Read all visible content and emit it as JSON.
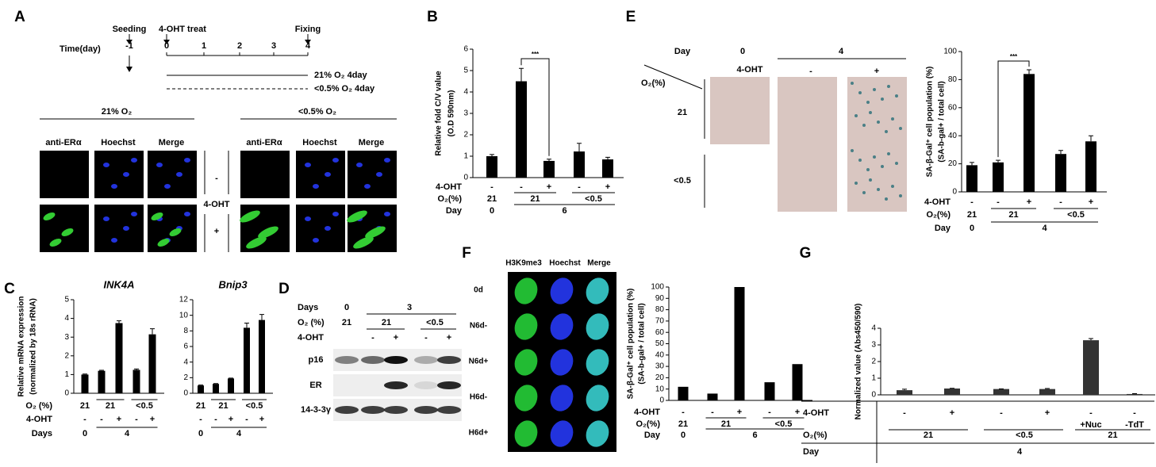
{
  "panel_labels": [
    "A",
    "B",
    "C",
    "D",
    "E",
    "F",
    "G"
  ],
  "timeline": {
    "axis_label": "Time(day)",
    "events": [
      "Seeding",
      "4-OHT treat",
      "Fixing"
    ],
    "ticks": [
      "-1",
      "0",
      "1",
      "2",
      "3",
      "4"
    ],
    "conditions": [
      "21% O₂ 4day",
      "<0.5% O₂ 4day"
    ]
  },
  "panel_a": {
    "conditions": [
      "21% O₂",
      "<0.5% O₂"
    ],
    "columns": [
      "anti-ERα",
      "Hoechst",
      "Merge"
    ],
    "treatment": "4-OHT",
    "rows": [
      "-",
      "+"
    ]
  },
  "panel_d": {
    "rows": [
      {
        "label": "Days",
        "cells": [
          "0",
          "3"
        ]
      },
      {
        "label": "O₂ (%)",
        "cells": [
          "21",
          "21",
          "<0.5"
        ]
      },
      {
        "label": "4-OHT",
        "cells": [
          "-",
          "+",
          "-",
          "+"
        ]
      }
    ],
    "bands": [
      "p16",
      "ER",
      "14-3-3γ"
    ]
  },
  "panel_e": {
    "day_label": "Day",
    "days": [
      "0",
      "4"
    ],
    "treatment": "4-OHT",
    "treatments": [
      "-",
      "+"
    ],
    "o2_label": "O₂(%)",
    "o2": [
      "21",
      "<0.5"
    ]
  },
  "panel_f": {
    "columns": [
      "H3K9me3",
      "Hoechst",
      "Merge"
    ],
    "rows": [
      "0d",
      "N6d-",
      "N6d+",
      "H6d-",
      "H6d+"
    ]
  },
  "chart_data": [
    {
      "type": "bar",
      "ylabel": [
        "Relative fold C/V value",
        "(O.D 590nm)"
      ],
      "ylim": [
        0,
        6
      ],
      "yticks": [
        0,
        1,
        2,
        3,
        4,
        5,
        6
      ],
      "color": "#000000",
      "values": [
        1,
        4.5,
        0.78,
        1.22,
        0.85
      ],
      "errors": [
        0.08,
        0.6,
        0.08,
        0.38,
        0.1
      ],
      "annotation": "***",
      "rows": [
        {
          "label": "4-OHT",
          "cells": [
            "-",
            "-",
            "+",
            "-",
            "+"
          ]
        },
        {
          "label": "O₂(%)",
          "cells": [
            "21",
            "21",
            "<0.5"
          ]
        },
        {
          "label": "Day",
          "cells": [
            "0",
            "6"
          ]
        }
      ]
    },
    {
      "type": "bar",
      "title": "INK4A",
      "ylabel": [
        "Relative mRNA expression",
        "(normalized by 18s rRNA)"
      ],
      "ylim": [
        0,
        5
      ],
      "yticks": [
        0,
        1,
        2,
        3,
        4,
        5
      ],
      "color": "#000000",
      "values": [
        1,
        1.2,
        3.75,
        1.25,
        3.15
      ],
      "errors": [
        0.03,
        0.03,
        0.12,
        0.05,
        0.3
      ],
      "rows": [
        {
          "label": "O₂ (%)",
          "cells": [
            "21",
            "21",
            "<0.5"
          ]
        },
        {
          "label": "4-OHT",
          "cells": [
            "-",
            "-",
            "+",
            "-",
            "+"
          ]
        },
        {
          "label": "Days",
          "cells": [
            "0",
            "4"
          ]
        }
      ]
    },
    {
      "type": "bar",
      "title": "Bnip3",
      "ylim": [
        0,
        12
      ],
      "yticks": [
        0,
        2,
        4,
        6,
        8,
        10,
        12
      ],
      "color": "#000000",
      "values": [
        1,
        1.2,
        1.9,
        8.4,
        9.4
      ],
      "errors": [
        0.05,
        0.05,
        0.05,
        0.6,
        0.7
      ],
      "rows": [
        {
          "cells": [
            "21",
            "21",
            "<0.5"
          ]
        },
        {
          "cells": [
            "-",
            "-",
            "+",
            "-",
            "+"
          ]
        },
        {
          "cells": [
            "0",
            "4"
          ]
        }
      ]
    },
    {
      "type": "bar",
      "ylabel": [
        "SA-β-Gal⁺ cell population (%)",
        "(SA-b-gal+ / total cell)"
      ],
      "ylim": [
        0,
        100
      ],
      "yticks": [
        0,
        20,
        40,
        60,
        80,
        100
      ],
      "color": "#000000",
      "values": [
        19,
        21,
        84,
        27,
        36
      ],
      "errors": [
        2,
        1.5,
        3,
        2.5,
        4
      ],
      "annotation": "***",
      "rows": [
        {
          "label": "4-OHT",
          "cells": [
            "-",
            "-",
            "+",
            "-",
            "+"
          ]
        },
        {
          "label": "O₂(%)",
          "cells": [
            "21",
            "21",
            "<0.5"
          ]
        },
        {
          "label": "Day",
          "cells": [
            "0",
            "4"
          ]
        }
      ]
    },
    {
      "type": "bar",
      "ylabel": [
        "SA-β-Gal⁺ cell population (%)",
        "(SA-b-gal+ / total cell)"
      ],
      "ylim": [
        0,
        100
      ],
      "yticks": [
        0,
        10,
        20,
        30,
        40,
        50,
        60,
        70,
        80,
        90,
        100
      ],
      "color": "#000000",
      "values": [
        12,
        6,
        100,
        16,
        32
      ],
      "rows": [
        {
          "label": "4-OHT",
          "cells": [
            "-",
            "-",
            "+",
            "-",
            "+"
          ]
        },
        {
          "label": "O₂(%)",
          "cells": [
            "21",
            "21",
            "<0.5"
          ]
        },
        {
          "label": "Day",
          "cells": [
            "0",
            "6"
          ]
        }
      ]
    },
    {
      "type": "bar",
      "ylabel": [
        "Normalized value (Abs450/590)"
      ],
      "ylim": [
        0,
        4
      ],
      "yticks": [
        0,
        1,
        2,
        3,
        4
      ],
      "color": "#333333",
      "values": [
        0.28,
        0.38,
        0.35,
        0.35,
        3.28,
        0.05
      ],
      "errors": [
        0.06,
        0.01,
        0.01,
        0.03,
        0.1,
        0.02
      ],
      "rows": [
        {
          "label": "4-OHT",
          "cells": [
            "-",
            "+",
            "-",
            "+",
            "-",
            "-"
          ]
        },
        {
          "cells": [
            "+Nuc",
            "-TdT"
          ]
        },
        {
          "label": "O₂(%)",
          "cells": [
            "21",
            "<0.5",
            "21"
          ]
        },
        {
          "label": "Day",
          "cells": [
            "4"
          ]
        }
      ]
    }
  ]
}
